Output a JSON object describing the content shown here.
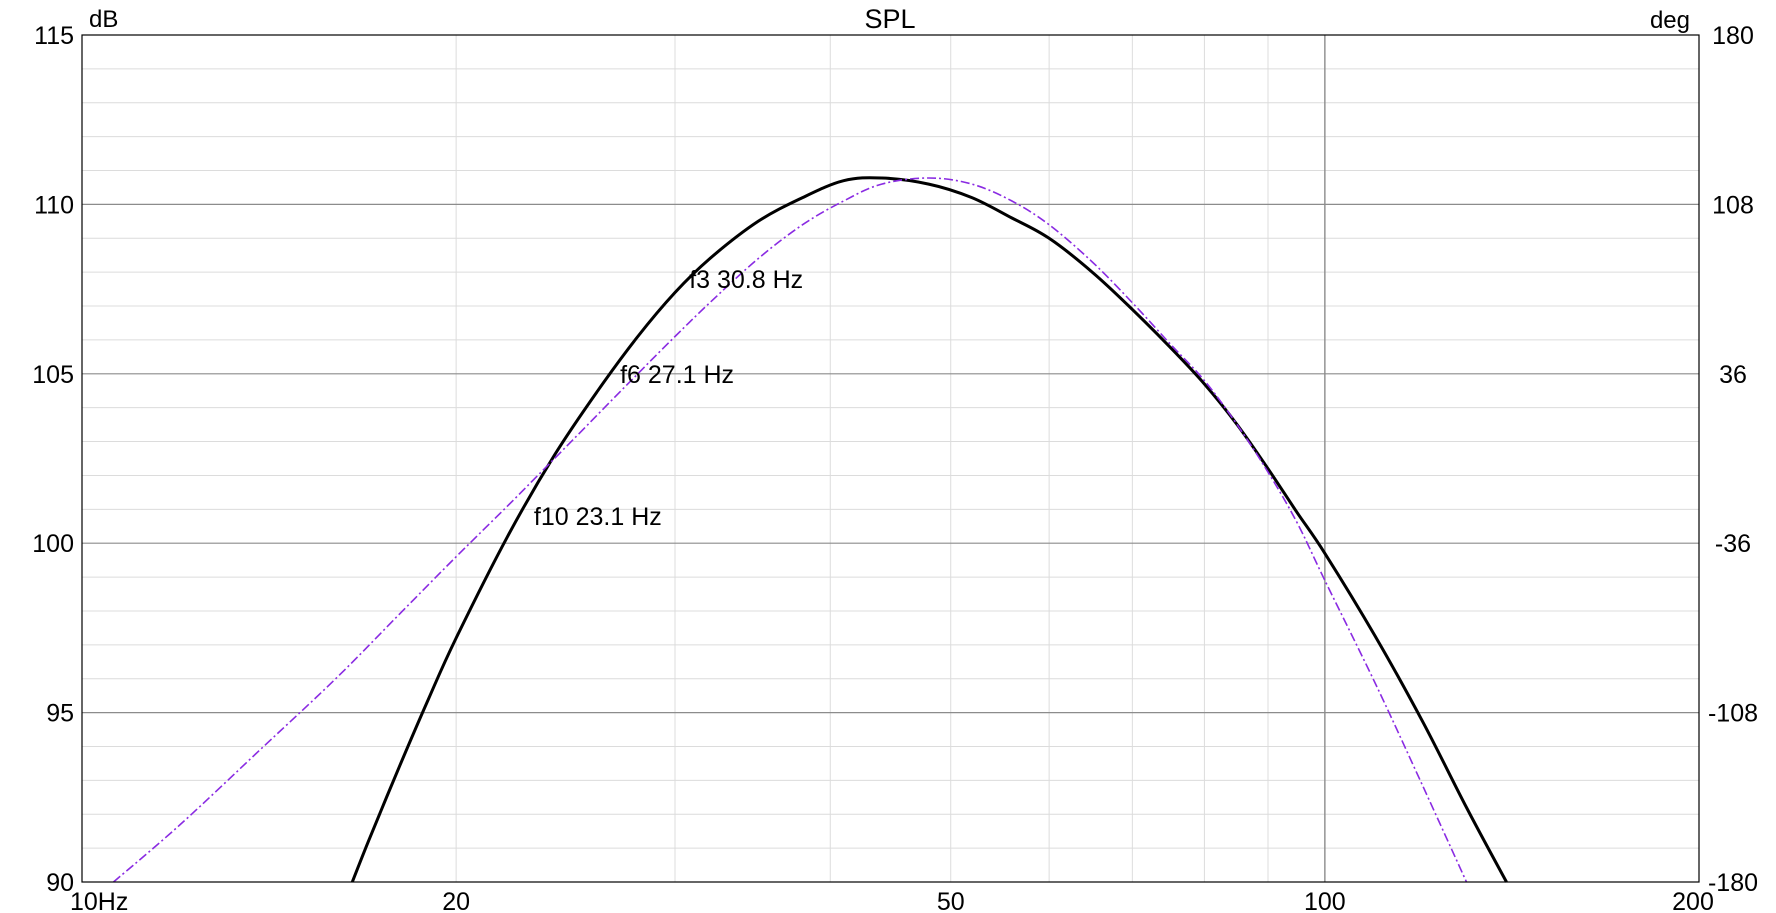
{
  "chart_data": {
    "type": "line",
    "title": "SPL",
    "y_left_unit": "dB",
    "y_right_unit": "deg",
    "x_scale": "log",
    "xlim": [
      10,
      200
    ],
    "ylim": [
      90,
      115
    ],
    "y_right_lim": [
      -180,
      180
    ],
    "x_tick_labels": [
      "10Hz",
      "20",
      "50",
      "100",
      "200"
    ],
    "y_left_tick_labels": [
      "115",
      "110",
      "105",
      "100",
      "95",
      "90"
    ],
    "y_right_tick_labels": [
      "180",
      "108",
      "36",
      "-36",
      "-108",
      "-180"
    ],
    "grid": true,
    "annotations": [
      {
        "text": "f3 30.8 Hz",
        "x": 30.8,
        "y": 107.8
      },
      {
        "text": "f6 27.1 Hz",
        "x": 27.1,
        "y": 105.0
      },
      {
        "text": "f10 23.1 Hz",
        "x": 23.1,
        "y": 100.8
      }
    ],
    "series": [
      {
        "style": "solid",
        "color": "#000000",
        "points": [
          [
            16.5,
            90
          ],
          [
            17,
            91.2
          ],
          [
            18,
            93.4
          ],
          [
            19,
            95.4
          ],
          [
            20,
            97.2
          ],
          [
            22,
            100.2
          ],
          [
            24,
            102.6
          ],
          [
            26,
            104.5
          ],
          [
            28,
            106.1
          ],
          [
            30,
            107.4
          ],
          [
            32,
            108.4
          ],
          [
            35,
            109.5
          ],
          [
            38,
            110.2
          ],
          [
            41,
            110.7
          ],
          [
            44,
            110.78
          ],
          [
            48,
            110.6
          ],
          [
            52,
            110.2
          ],
          [
            56,
            109.6
          ],
          [
            60,
            109.0
          ],
          [
            65,
            108.0
          ],
          [
            70,
            106.9
          ],
          [
            75,
            105.8
          ],
          [
            80,
            104.7
          ],
          [
            85,
            103.5
          ],
          [
            90,
            102.2
          ],
          [
            95,
            100.9
          ],
          [
            100,
            99.7
          ],
          [
            110,
            97.2
          ],
          [
            120,
            94.7
          ],
          [
            130,
            92.2
          ],
          [
            140,
            90
          ]
        ]
      },
      {
        "style": "dashdot",
        "color": "#8a2be2",
        "points": [
          [
            10.6,
            90
          ],
          [
            12,
            91.7
          ],
          [
            14,
            94.0
          ],
          [
            16,
            96.0
          ],
          [
            18,
            97.9
          ],
          [
            20,
            99.6
          ],
          [
            22,
            101.1
          ],
          [
            24,
            102.5
          ],
          [
            26,
            103.8
          ],
          [
            28,
            105.0
          ],
          [
            30,
            106.1
          ],
          [
            32,
            107.1
          ],
          [
            35,
            108.4
          ],
          [
            38,
            109.4
          ],
          [
            41,
            110.1
          ],
          [
            44,
            110.6
          ],
          [
            48,
            110.78
          ],
          [
            52,
            110.6
          ],
          [
            56,
            110.1
          ],
          [
            60,
            109.4
          ],
          [
            65,
            108.3
          ],
          [
            70,
            107.1
          ],
          [
            75,
            105.9
          ],
          [
            80,
            104.8
          ],
          [
            85,
            103.5
          ],
          [
            90,
            102.1
          ],
          [
            95,
            100.6
          ],
          [
            100,
            98.9
          ],
          [
            110,
            95.8
          ],
          [
            120,
            92.8
          ],
          [
            130,
            90
          ]
        ]
      }
    ]
  }
}
